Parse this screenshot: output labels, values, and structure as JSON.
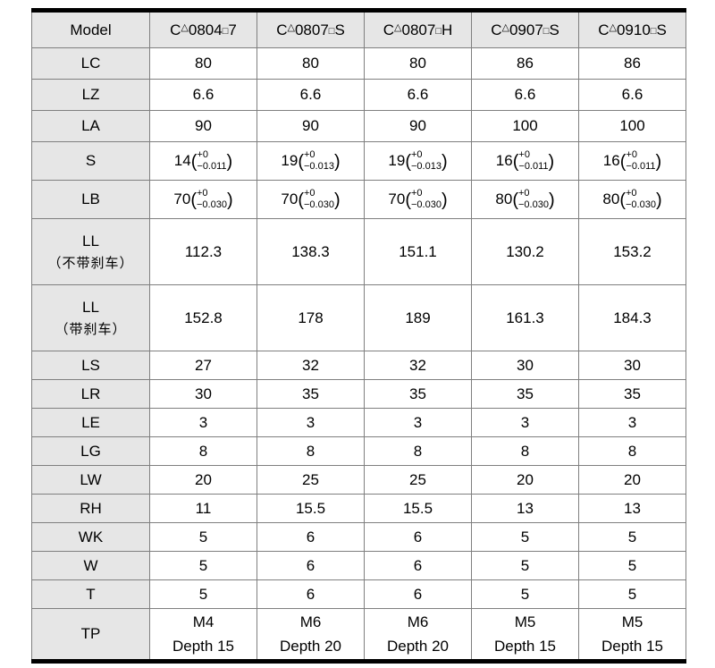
{
  "table": {
    "colors": {
      "header_bg": "#e6e6e6",
      "label_bg": "#e6e6e6",
      "grid": "#7f7f7f",
      "frame": "#000000"
    },
    "tolerance_format": {
      "open": "(",
      "close": ")"
    },
    "header": [
      "Model",
      "C△0804□7",
      "C△0807□S",
      "C△0807□H",
      "C△0907□S",
      "C△0910□S"
    ],
    "rows": [
      {
        "label": "LC",
        "values": [
          "80",
          "80",
          "80",
          "86",
          "86"
        ]
      },
      {
        "label": "LZ",
        "values": [
          "6.6",
          "6.6",
          "6.6",
          "6.6",
          "6.6"
        ]
      },
      {
        "label": "LA",
        "values": [
          "90",
          "90",
          "90",
          "100",
          "100"
        ]
      },
      {
        "label": "S",
        "values": [
          {
            "base": "14",
            "sup": "+0",
            "sub": "−0.011"
          },
          {
            "base": "19",
            "sup": "+0",
            "sub": "−0.013"
          },
          {
            "base": "19",
            "sup": "+0",
            "sub": "−0.013"
          },
          {
            "base": "16",
            "sup": "+0",
            "sub": "−0.011"
          },
          {
            "base": "16",
            "sup": "+0",
            "sub": "−0.011"
          }
        ]
      },
      {
        "label": "LB",
        "values": [
          {
            "base": "70",
            "sup": "+0",
            "sub": "−0.030"
          },
          {
            "base": "70",
            "sup": "+0",
            "sub": "−0.030"
          },
          {
            "base": "70",
            "sup": "+0",
            "sub": "−0.030"
          },
          {
            "base": "80",
            "sup": "+0",
            "sub": "−0.030"
          },
          {
            "base": "80",
            "sup": "+0",
            "sub": "−0.030"
          }
        ]
      },
      {
        "label": "LL",
        "sublabel": "（不带刹车）",
        "values": [
          "112.3",
          "138.3",
          "151.1",
          "130.2",
          "153.2"
        ]
      },
      {
        "label": "LL",
        "sublabel": "（带刹车）",
        "values": [
          "152.8",
          "178",
          "189",
          "161.3",
          "184.3"
        ]
      },
      {
        "label": "LS",
        "values": [
          "27",
          "32",
          "32",
          "30",
          "30"
        ]
      },
      {
        "label": "LR",
        "values": [
          "30",
          "35",
          "35",
          "35",
          "35"
        ]
      },
      {
        "label": "LE",
        "values": [
          "3",
          "3",
          "3",
          "3",
          "3"
        ]
      },
      {
        "label": "LG",
        "values": [
          "8",
          "8",
          "8",
          "8",
          "8"
        ]
      },
      {
        "label": "LW",
        "values": [
          "20",
          "25",
          "25",
          "20",
          "20"
        ]
      },
      {
        "label": "RH",
        "values": [
          "11",
          "15.5",
          "15.5",
          "13",
          "13"
        ]
      },
      {
        "label": "WK",
        "values": [
          "5",
          "6",
          "6",
          "5",
          "5"
        ]
      },
      {
        "label": "W",
        "values": [
          "5",
          "6",
          "6",
          "5",
          "5"
        ]
      },
      {
        "label": "T",
        "values": [
          "5",
          "6",
          "6",
          "5",
          "5"
        ]
      },
      {
        "label": "TP",
        "values": [
          {
            "line1": "M4",
            "line2": "Depth 15"
          },
          {
            "line1": "M6",
            "line2": "Depth 20"
          },
          {
            "line1": "M6",
            "line2": "Depth 20"
          },
          {
            "line1": "M5",
            "line2": "Depth 15"
          },
          {
            "line1": "M5",
            "line2": "Depth 15"
          }
        ]
      }
    ]
  }
}
